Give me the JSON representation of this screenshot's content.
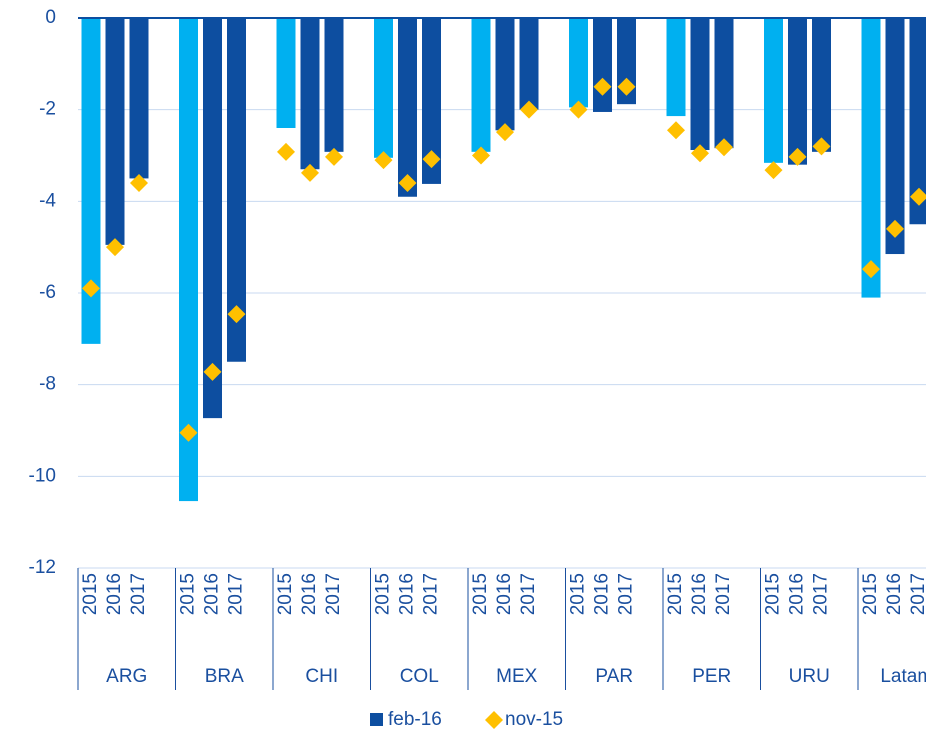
{
  "chart_data": {
    "type": "bar",
    "groups": [
      "ARG",
      "BRA",
      "CHI",
      "COL",
      "MEX",
      "PAR",
      "PER",
      "URU",
      "Latam"
    ],
    "categories": [
      "2015",
      "2016",
      "2017",
      "2015",
      "2016",
      "2017",
      "2015",
      "2016",
      "2017",
      "2015",
      "2016",
      "2017",
      "2015",
      "2016",
      "2017",
      "2015",
      "2016",
      "2017",
      "2015",
      "2016",
      "2017",
      "2015",
      "2016",
      "2017",
      "2015",
      "2016",
      "2017"
    ],
    "series": [
      {
        "name": "feb-16",
        "color": "#0d4ea0",
        "point_colors": [
          "#00b0f0",
          "#0d4ea0",
          "#0d4ea0",
          "#00b0f0",
          "#0d4ea0",
          "#0d4ea0",
          "#00b0f0",
          "#0d4ea0",
          "#0d4ea0",
          "#00b0f0",
          "#0d4ea0",
          "#0d4ea0",
          "#00b0f0",
          "#0d4ea0",
          "#0d4ea0",
          "#00b0f0",
          "#0d4ea0",
          "#0d4ea0",
          "#00b0f0",
          "#0d4ea0",
          "#0d4ea0",
          "#00b0f0",
          "#0d4ea0",
          "#0d4ea0",
          "#00b0f0",
          "#0d4ea0",
          "#0d4ea0"
        ],
        "values": [
          -7.11,
          -4.95,
          -3.5,
          -10.54,
          -8.73,
          -7.5,
          -2.4,
          -3.3,
          -2.92,
          -3.05,
          -3.9,
          -3.62,
          -2.92,
          -2.45,
          -2.0,
          -1.95,
          -2.05,
          -1.88,
          -2.14,
          -2.88,
          -2.84,
          -3.16,
          -3.2,
          -2.92,
          -6.1,
          -5.15,
          -4.5
        ]
      },
      {
        "name": "nov-15",
        "color": "#ffc000",
        "marker": "diamond",
        "values": [
          -5.9,
          -5.0,
          -3.6,
          -9.05,
          -7.72,
          -6.46,
          -2.92,
          -3.38,
          -3.03,
          -3.1,
          -3.6,
          -3.08,
          -3.0,
          -2.49,
          -2.0,
          -2.0,
          -1.5,
          -1.5,
          -2.45,
          -2.95,
          -2.82,
          -3.32,
          -3.03,
          -2.8,
          -5.48,
          -4.6,
          -3.9
        ]
      }
    ],
    "ylim": [
      -12,
      0
    ],
    "yticks": [
      0,
      -2,
      -4,
      -6,
      -8,
      -10,
      -12
    ],
    "grid": true
  }
}
